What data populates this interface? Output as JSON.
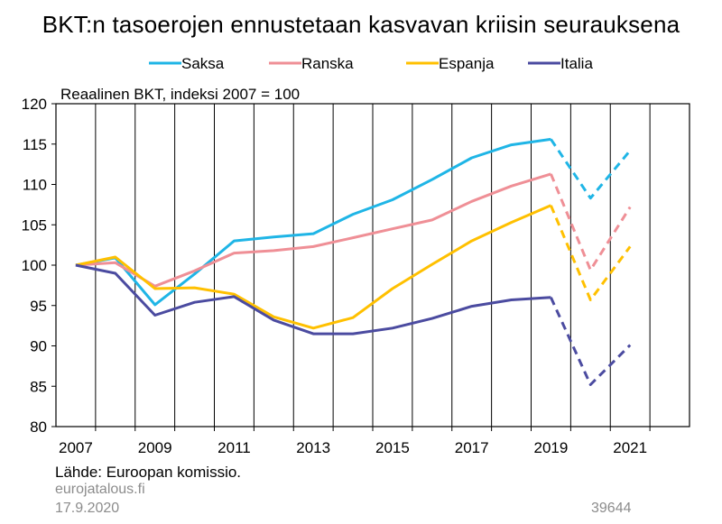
{
  "chart_data": {
    "type": "line",
    "title": "BKT:n tasoerojen ennustetaan kasvavan kriisin seurauksena",
    "subtitle": "Reaalinen BKT, indeksi 2007 = 100",
    "x": [
      2007,
      2008,
      2009,
      2010,
      2011,
      2012,
      2013,
      2014,
      2015,
      2016,
      2017,
      2018,
      2019,
      2020,
      2021
    ],
    "x_tick_labels": [
      "2007",
      "2009",
      "2011",
      "2013",
      "2015",
      "2017",
      "2019",
      "2021"
    ],
    "y_tick_labels": [
      "80",
      "85",
      "90",
      "95",
      "100",
      "105",
      "110",
      "115",
      "120"
    ],
    "ylim": [
      80,
      120
    ],
    "xlim": [
      2006.5,
      2022.5
    ],
    "forecast_from": 2019,
    "grid": "vertical",
    "legend_position": "top",
    "series": [
      {
        "name": "Saksa",
        "color": "#1fb5e6",
        "values": [
          100,
          100.9,
          95.1,
          98.9,
          103.0,
          103.5,
          103.9,
          106.3,
          108.1,
          110.6,
          113.3,
          114.9,
          115.6,
          108.3,
          114.2
        ]
      },
      {
        "name": "Ranska",
        "color": "#ef8f96",
        "values": [
          100,
          100.3,
          97.4,
          99.3,
          101.5,
          101.8,
          102.3,
          103.4,
          104.5,
          105.6,
          107.9,
          109.8,
          111.3,
          99.4,
          107.2
        ]
      },
      {
        "name": "Espanja",
        "color": "#ffc000",
        "values": [
          100,
          101.0,
          97.1,
          97.2,
          96.4,
          93.6,
          92.2,
          93.5,
          97.1,
          100.1,
          103.0,
          105.3,
          107.4,
          95.7,
          102.3
        ]
      },
      {
        "name": "Italia",
        "color": "#4b4ba0",
        "values": [
          100,
          99.0,
          93.8,
          95.4,
          96.1,
          93.2,
          91.5,
          91.5,
          92.2,
          93.4,
          94.9,
          95.7,
          96.0,
          85.2,
          90.1
        ]
      }
    ]
  },
  "footer": {
    "source": "Lähde: Euroopan komissio.",
    "site": "eurojatalous.fi",
    "date": "17.9.2020",
    "chart_id": "39644"
  }
}
